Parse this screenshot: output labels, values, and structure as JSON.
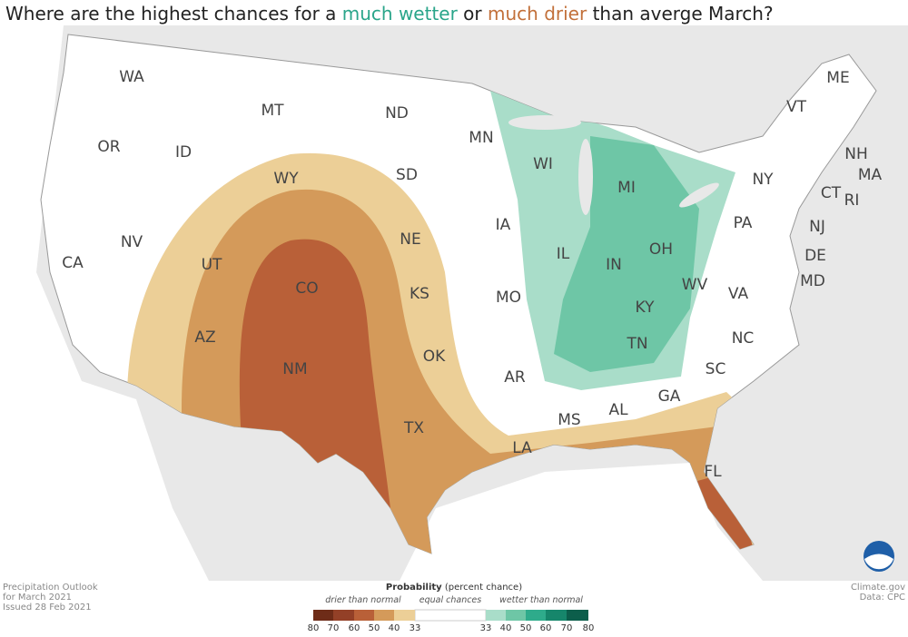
{
  "title": {
    "segments": [
      {
        "text": "Where are the highest chances for a ",
        "color": "#222222"
      },
      {
        "text": "much wetter",
        "color": "#2aa58a"
      },
      {
        "text": " or ",
        "color": "#222222"
      },
      {
        "text": "much drier",
        "color": "#c2703a"
      },
      {
        "text": " than averge March?",
        "color": "#222222"
      }
    ]
  },
  "states": [
    "WA",
    "MT",
    "ND",
    "MN",
    "ME",
    "VT",
    "OR",
    "ID",
    "WI",
    "MI",
    "NH",
    "MA",
    "NY",
    "SD",
    "WY",
    "CT",
    "RI",
    "NJ",
    "PA",
    "IA",
    "NE",
    "NV",
    "UT",
    "CA",
    "IL",
    "IN",
    "OH",
    "DE",
    "CO",
    "KS",
    "MO",
    "WV",
    "VA",
    "MD",
    "KY",
    "NC",
    "AZ",
    "NM",
    "OK",
    "AR",
    "TN",
    "SC",
    "GA",
    "AL",
    "MS",
    "TX",
    "LA",
    "FL"
  ],
  "footer": {
    "left": [
      "Precipitation Outlook",
      "for March 2021",
      "Issued 28 Feb 2021"
    ],
    "right": [
      "Climate.gov",
      "Data: CPC"
    ]
  },
  "legend": {
    "title": "Probability",
    "subtitle": "(percent chance)",
    "drier": "drier than normal",
    "equal": "equal chances",
    "wetter": "wetter than normal",
    "drier_ticks": [
      80,
      70,
      60,
      50,
      40,
      33
    ],
    "wetter_ticks": [
      33,
      40,
      50,
      60,
      70,
      80
    ],
    "drier_colors": [
      "#6e2c18",
      "#934027",
      "#b96038",
      "#d49a5a",
      "#eccf97"
    ],
    "wetter_colors": [
      "#a9ddc9",
      "#6ec6a6",
      "#2eab8b",
      "#16866b",
      "#0c5e4b"
    ]
  }
}
